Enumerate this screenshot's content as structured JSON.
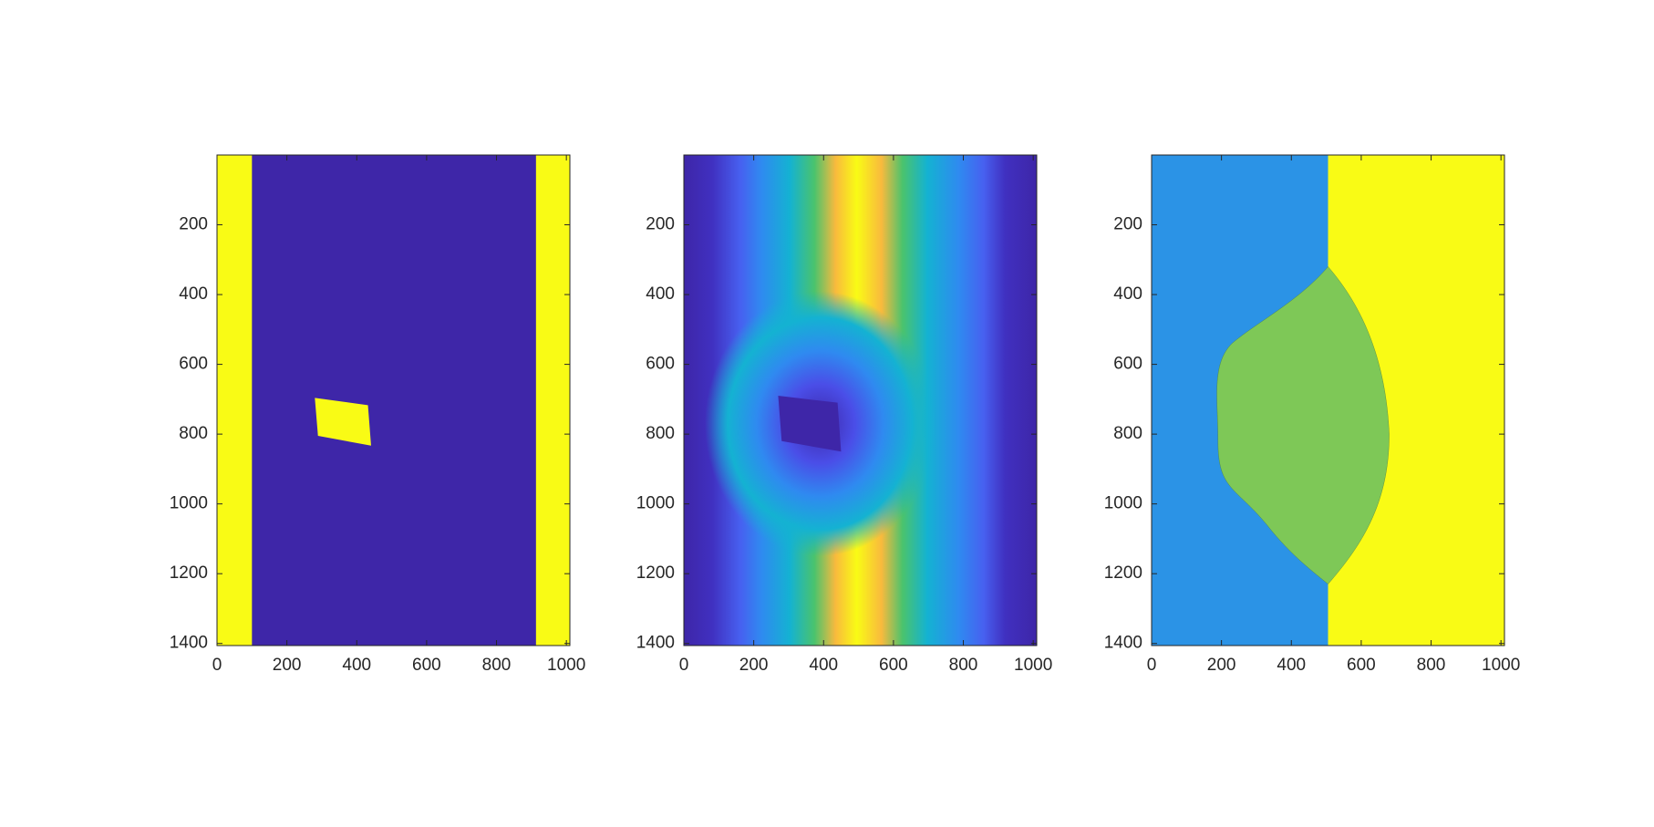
{
  "chart_data": [
    {
      "type": "image",
      "xlim": [
        0,
        1010
      ],
      "ylim": [
        0,
        1406
      ],
      "y_reversed": true,
      "xticks": [
        0,
        200,
        400,
        600,
        800,
        1000
      ],
      "yticks": [
        200,
        400,
        600,
        800,
        1000,
        1200,
        1400
      ]
    },
    {
      "type": "image",
      "xlim": [
        0,
        1010
      ],
      "ylim": [
        0,
        1406
      ],
      "y_reversed": true,
      "xticks": [
        0,
        200,
        400,
        600,
        800,
        1000
      ],
      "yticks": [
        200,
        400,
        600,
        800,
        1000,
        1200,
        1400
      ]
    },
    {
      "type": "image",
      "xlim": [
        0,
        1010
      ],
      "ylim": [
        0,
        1406
      ],
      "y_reversed": true,
      "xticks": [
        0,
        200,
        400,
        600,
        800,
        1000
      ],
      "yticks": [
        200,
        400,
        600,
        800,
        1000,
        1200,
        1400
      ]
    }
  ]
}
